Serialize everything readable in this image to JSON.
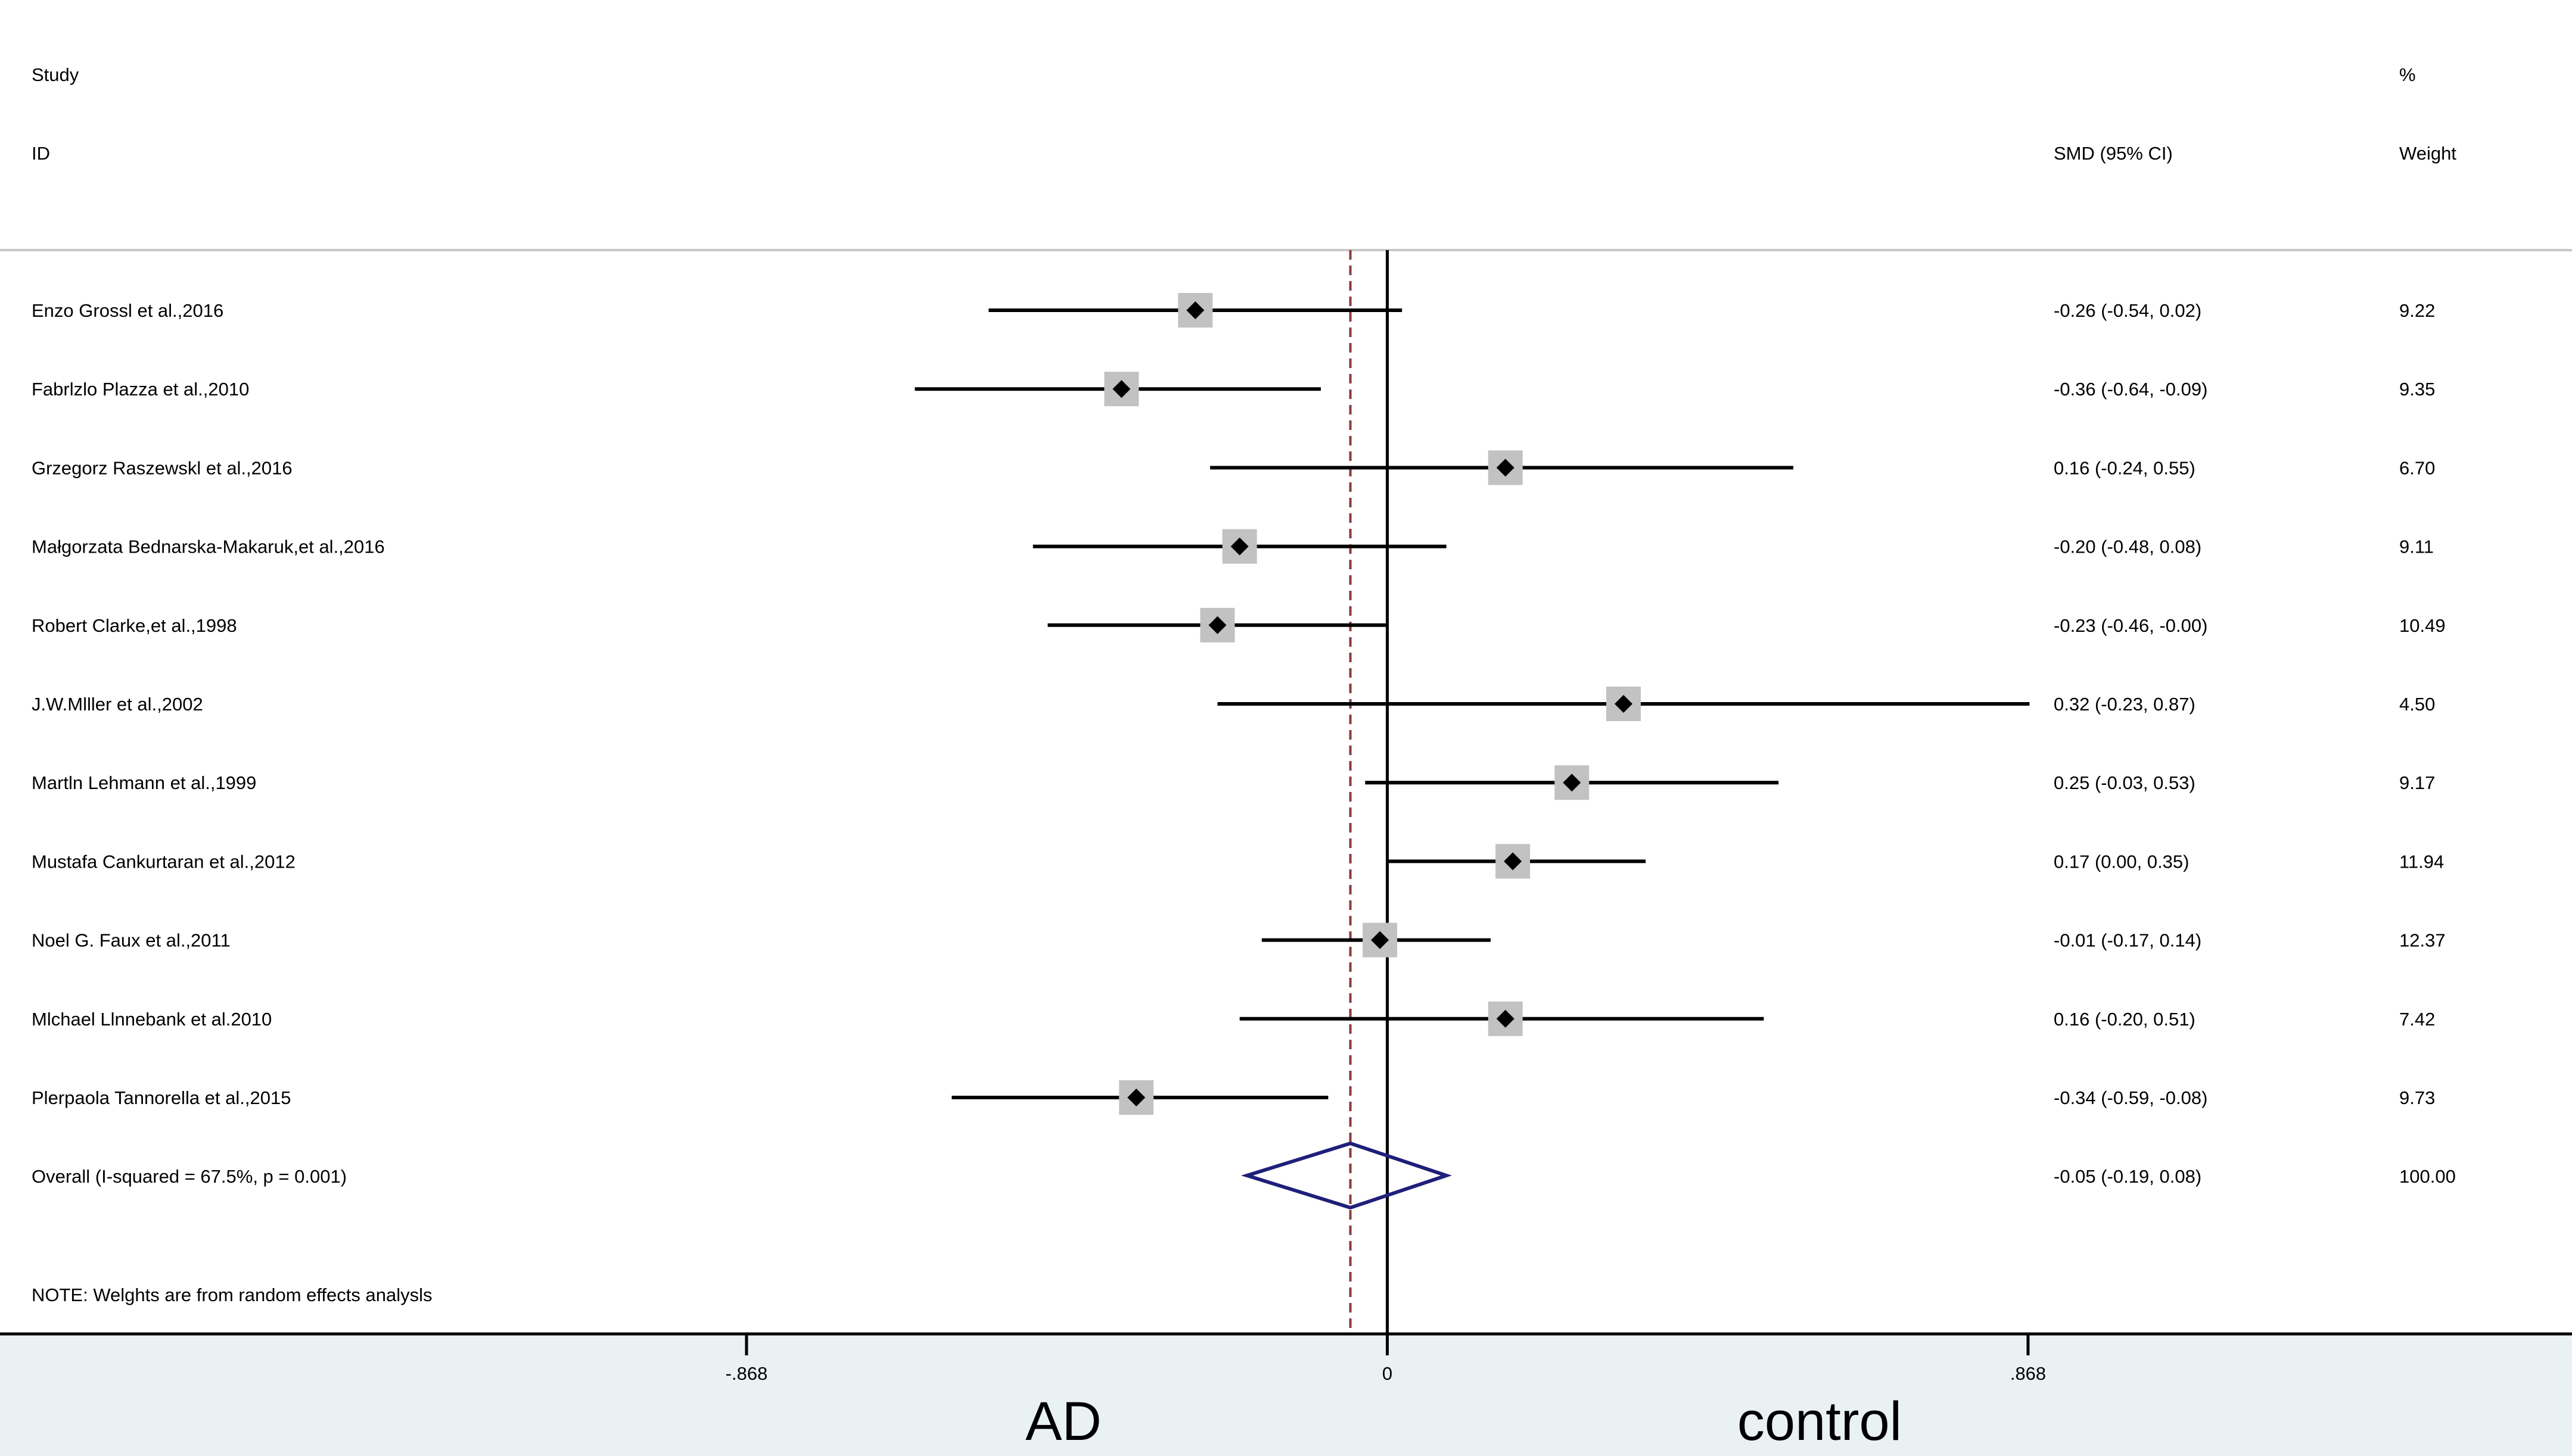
{
  "header": {
    "study_line1": "Study",
    "study_line2": "ID",
    "effect_header": "SMD (95% CI)",
    "weight_line1": "%",
    "weight_line2": "Weight"
  },
  "colors": {
    "marker_box": "#c2c2c2",
    "ci_line": "#000000",
    "overall_diamond": "#1f1f7a",
    "overall_dashed_line": "#8b3a3a",
    "bottom_band": "#eaf1f3",
    "separator": "#c8c8c8"
  },
  "chart_data": {
    "type": "forest",
    "x_axis": {
      "ticks": [
        -0.868,
        0,
        0.868
      ],
      "tick_labels": [
        "-.868",
        "0",
        ".868"
      ],
      "range": [
        -0.868,
        0.868
      ]
    },
    "bottom_labels": {
      "left": "AD",
      "right": "control"
    },
    "studies": [
      {
        "label": "Enzo Grossl et al.,2016",
        "smd": -0.26,
        "ci_low": -0.54,
        "ci_high": 0.02,
        "ci_text": "-0.26 (-0.54, 0.02)",
        "weight": 9.22,
        "weight_text": "9.22"
      },
      {
        "label": "Fabrlzlo Plazza et al.,2010",
        "smd": -0.36,
        "ci_low": -0.64,
        "ci_high": -0.09,
        "ci_text": "-0.36 (-0.64, -0.09)",
        "weight": 9.35,
        "weight_text": "9.35"
      },
      {
        "label": "Grzegorz Raszewskl et al.,2016",
        "smd": 0.16,
        "ci_low": -0.24,
        "ci_high": 0.55,
        "ci_text": "0.16 (-0.24, 0.55)",
        "weight": 6.7,
        "weight_text": "6.70"
      },
      {
        "label": "Małgorzata Bednarska-Makaruk,et al.,2016",
        "smd": -0.2,
        "ci_low": -0.48,
        "ci_high": 0.08,
        "ci_text": "-0.20 (-0.48, 0.08)",
        "weight": 9.11,
        "weight_text": "9.11"
      },
      {
        "label": "Robert Clarke,et al.,1998",
        "smd": -0.23,
        "ci_low": -0.46,
        "ci_high": -0.0,
        "ci_text": "-0.23 (-0.46, -0.00)",
        "weight": 10.49,
        "weight_text": "10.49"
      },
      {
        "label": "J.W.Mlller et al.,2002",
        "smd": 0.32,
        "ci_low": -0.23,
        "ci_high": 0.87,
        "ci_text": "0.32 (-0.23, 0.87)",
        "weight": 4.5,
        "weight_text": "4.50"
      },
      {
        "label": "Martln Lehmann et al.,1999",
        "smd": 0.25,
        "ci_low": -0.03,
        "ci_high": 0.53,
        "ci_text": "0.25 (-0.03, 0.53)",
        "weight": 9.17,
        "weight_text": "9.17"
      },
      {
        "label": "Mustafa Cankurtaran et al.,2012",
        "smd": 0.17,
        "ci_low": 0.0,
        "ci_high": 0.35,
        "ci_text": "0.17 (0.00, 0.35)",
        "weight": 11.94,
        "weight_text": "11.94"
      },
      {
        "label": "Noel G. Faux et al.,2011",
        "smd": -0.01,
        "ci_low": -0.17,
        "ci_high": 0.14,
        "ci_text": "-0.01 (-0.17, 0.14)",
        "weight": 12.37,
        "weight_text": "12.37"
      },
      {
        "label": "Mlchael Llnnebank et al.2010",
        "smd": 0.16,
        "ci_low": -0.2,
        "ci_high": 0.51,
        "ci_text": "0.16 (-0.20, 0.51)",
        "weight": 7.42,
        "weight_text": "7.42"
      },
      {
        "label": "Plerpaola Tannorella et al.,2015",
        "smd": -0.34,
        "ci_low": -0.59,
        "ci_high": -0.08,
        "ci_text": "-0.34 (-0.59, -0.08)",
        "weight": 9.73,
        "weight_text": "9.73"
      }
    ],
    "overall": {
      "label": "Overall  (I-squared = 67.5%, p = 0.001)",
      "smd": -0.05,
      "ci_low": -0.19,
      "ci_high": 0.08,
      "ci_text": "-0.05 (-0.19, 0.08)",
      "weight_text": "100.00"
    },
    "note": "NOTE: Welghts are from random effects analysls"
  }
}
